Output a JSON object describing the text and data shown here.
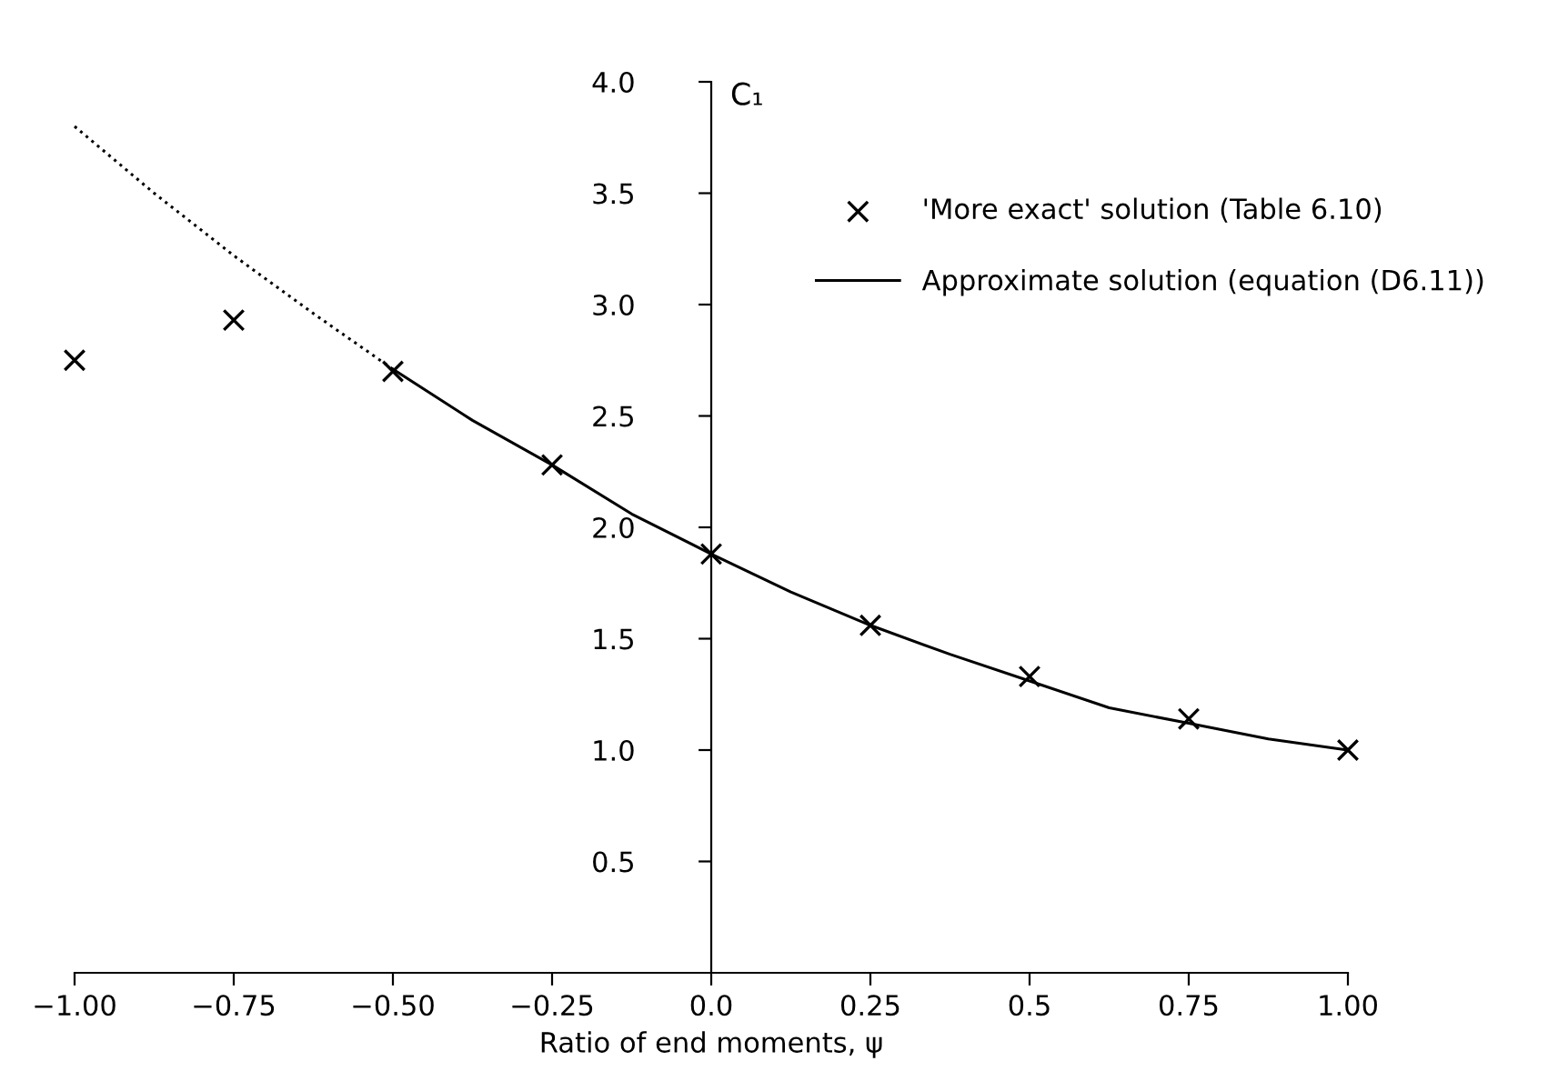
{
  "chart_data": {
    "type": "scatter",
    "xlabel": "Ratio of end moments, ψ",
    "ylabel": "C₁",
    "xlim": [
      -1,
      1
    ],
    "ylim": [
      0,
      4
    ],
    "xticks": [
      {
        "value": -1,
        "label": "−1.00"
      },
      {
        "value": -0.75,
        "label": "−0.75"
      },
      {
        "value": -0.5,
        "label": "−0.50"
      },
      {
        "value": -0.25,
        "label": "−0.25"
      },
      {
        "value": 0,
        "label": "0.0"
      },
      {
        "value": 0.25,
        "label": "0.25"
      },
      {
        "value": 0.5,
        "label": "0.5"
      },
      {
        "value": 0.75,
        "label": "0.75"
      },
      {
        "value": 1,
        "label": "1.00"
      }
    ],
    "yticks": [
      {
        "value": 0.5,
        "label": "0.5"
      },
      {
        "value": 1,
        "label": "1.0"
      },
      {
        "value": 1.5,
        "label": "1.5"
      },
      {
        "value": 2,
        "label": "2.0"
      },
      {
        "value": 2.5,
        "label": "2.5"
      },
      {
        "value": 3,
        "label": "3.0"
      },
      {
        "value": 3.5,
        "label": "3.5"
      },
      {
        "value": 4,
        "label": "4.0"
      }
    ],
    "legend": "top right",
    "series": [
      {
        "name": "'More exact' solution (Table 6.10)",
        "type": "scatter",
        "marker": "cross",
        "color": "#000000",
        "x": [
          -1,
          -0.75,
          -0.5,
          -0.25,
          0,
          0.25,
          0.5,
          0.75,
          1
        ],
        "values": [
          2.75,
          2.93,
          2.7,
          2.28,
          1.88,
          1.56,
          1.33,
          1.14,
          1.0
        ]
      },
      {
        "type": "line",
        "line_style": "dotted",
        "marker": "none",
        "color": "#000000",
        "x": [
          -1,
          -0.875,
          -0.75,
          -0.625,
          -0.5
        ],
        "values": [
          3.8,
          3.5,
          3.22,
          2.96,
          2.71
        ]
      },
      {
        "name": "Approximate solution (equation (D6.11))",
        "type": "line",
        "line_style": "solid",
        "marker": "none",
        "color": "#000000",
        "x": [
          -0.5,
          -0.375,
          -0.25,
          -0.125,
          0,
          0.125,
          0.25,
          0.375,
          0.5,
          0.625,
          0.75,
          0.875,
          1
        ],
        "values": [
          2.71,
          2.48,
          2.28,
          2.06,
          1.88,
          1.71,
          1.56,
          1.43,
          1.31,
          1.19,
          1.12,
          1.05,
          1.0
        ]
      }
    ]
  }
}
